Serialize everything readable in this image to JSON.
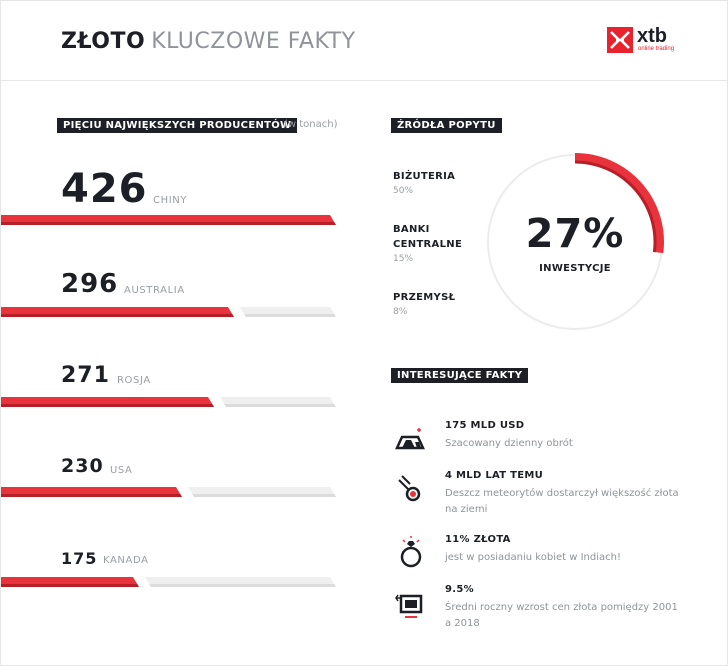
{
  "header": {
    "title_strong": "ZŁOTO",
    "title_light": "KLUCZOWE FAKTY",
    "logo_text": "xtb",
    "logo_sub": "online trading",
    "logo_icon": "xtb-x-icon"
  },
  "producers": {
    "tag": "PIĘCIU NAJWIĘKSZYCH PRODUCENTÓW",
    "note": "(w tonach)",
    "items": [
      {
        "value": "426",
        "country": "CHINY",
        "tons": 426
      },
      {
        "value": "296",
        "country": "AUSTRALIA",
        "tons": 296
      },
      {
        "value": "271",
        "country": "ROSJA",
        "tons": 271
      },
      {
        "value": "230",
        "country": "USA",
        "tons": 230
      },
      {
        "value": "175",
        "country": "KANADA",
        "tons": 175
      }
    ],
    "max_tons": 426
  },
  "demand": {
    "tag": "ŹRÓDŁA POPYTU",
    "items": [
      {
        "label": "BIŻUTERIA",
        "pct": "50%"
      },
      {
        "label": "BANKI CENTRALNE",
        "pct": "15%"
      },
      {
        "label": "PRZEMYSŁ",
        "pct": "8%"
      }
    ],
    "highlight_value": "27%",
    "highlight_label": "INWESTYCJE",
    "highlight_fraction": 0.27
  },
  "facts": {
    "tag": "INTERESUJĄCE FAKTY",
    "items": [
      {
        "icon": "gold-bars-icon",
        "title": "175 MLD USD",
        "desc": "Szacowany dzienny obrót"
      },
      {
        "icon": "meteor-icon",
        "title": "4 MLD LAT TEMU",
        "desc": "Deszcz meteorytów dostarczył większość złota na ziemi"
      },
      {
        "icon": "ring-icon",
        "title": "11% ZŁOTA",
        "desc": "jest w posiadaniu kobiet w Indiach!"
      },
      {
        "icon": "price-chart-icon",
        "title": "9.5%",
        "desc": "Średni roczny wzrost cen złota pomiędzy 2001 a 2018"
      }
    ]
  },
  "colors": {
    "accent": "#e8323c",
    "accent_dark": "#b71e27",
    "dark": "#1c1f26",
    "grey_text": "#9a9ea5",
    "track": "#efefef"
  }
}
